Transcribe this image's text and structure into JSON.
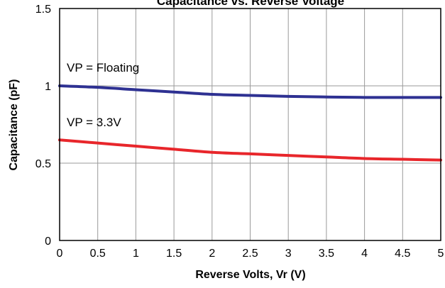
{
  "chart_data": {
    "type": "line",
    "title": "Capacitance vs. Reverse Voltage",
    "xlabel": "Reverse Volts, Vr (V)",
    "ylabel": "Capacitance (pF)",
    "xlim": [
      0,
      5
    ],
    "ylim": [
      0,
      1.5
    ],
    "x_ticks": [
      "0",
      "0.5",
      "1",
      "1.5",
      "2",
      "2.5",
      "3",
      "3.5",
      "4",
      "4.5",
      "5"
    ],
    "y_ticks": [
      "0",
      "0.5",
      "1",
      "1.5"
    ],
    "grid": true,
    "series": [
      {
        "name": "VP = Floating",
        "color": "#2e3192",
        "x": [
          0,
          0.5,
          1,
          1.5,
          2,
          2.5,
          3,
          3.5,
          4,
          4.5,
          5
        ],
        "y": [
          1.0,
          0.99,
          0.975,
          0.96,
          0.945,
          0.938,
          0.932,
          0.928,
          0.925,
          0.925,
          0.925
        ]
      },
      {
        "name": "VP = 3.3V",
        "color": "#e8262b",
        "x": [
          0,
          0.5,
          1,
          1.5,
          2,
          2.5,
          3,
          3.5,
          4,
          4.5,
          5
        ],
        "y": [
          0.65,
          0.63,
          0.61,
          0.59,
          0.57,
          0.56,
          0.55,
          0.54,
          0.53,
          0.525,
          0.52
        ]
      }
    ]
  }
}
